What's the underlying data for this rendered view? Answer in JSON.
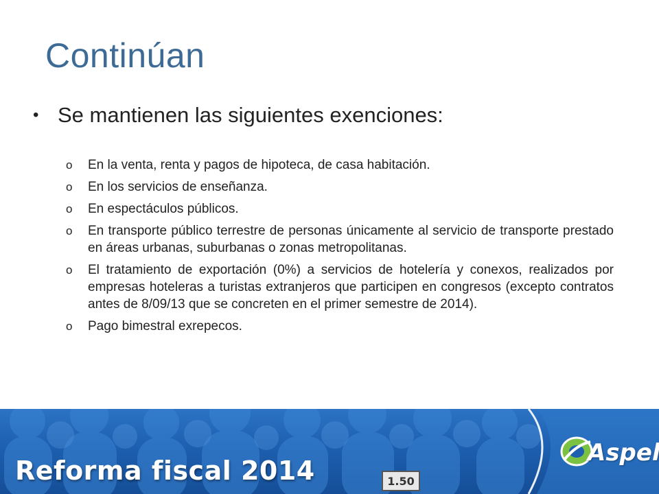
{
  "slide": {
    "title": "Continúan",
    "main_bullet": {
      "marker": "•",
      "text": "Se mantienen las siguientes exenciones:"
    },
    "sub_marker": "o",
    "sub_items": [
      "En la venta, renta y pagos de hipoteca, de casa habitación.",
      "En los servicios de enseñanza.",
      "En espectáculos públicos.",
      "En transporte público terrestre de personas únicamente al servicio de transporte prestado en áreas urbanas, suburbanas o zonas metropolitanas.",
      "El tratamiento de exportación (0%) a servicios de hotelería y conexos, realizados por empresas hoteleras a turistas extranjeros que participen en congresos (excepto contratos antes de 8/09/13 que se concreten en el primer semestre de 2014).",
      "Pago bimestral exrepecos."
    ]
  },
  "footer": {
    "title": "Reforma fiscal 2014",
    "price_tag": "1.50",
    "logo_text": "Aspel",
    "colors": {
      "band": "#1D5FB0",
      "logo_green": "#7CC242"
    }
  },
  "colors": {
    "title": "#3E6B96",
    "text": "#222222"
  }
}
